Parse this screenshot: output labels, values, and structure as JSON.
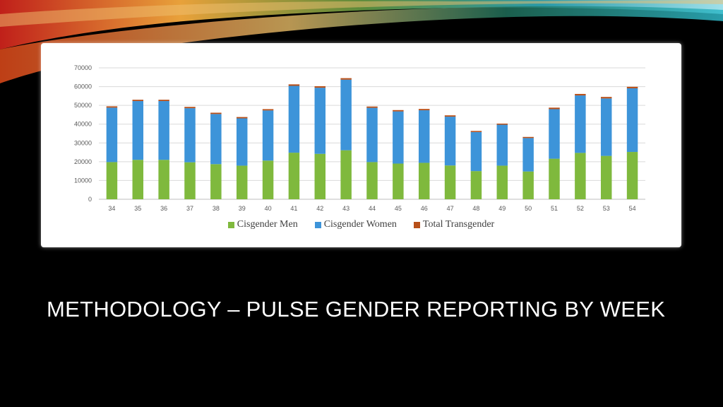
{
  "slide": {
    "title": "METHODOLOGY – PULSE GENDER REPORTING BY WEEK"
  },
  "colors": {
    "men": "#7fb93d",
    "women": "#3d94d9",
    "trans": "#b8501a",
    "grid": "#d9d9d9",
    "tick": "#595959"
  },
  "chart_data": {
    "type": "bar",
    "stacked": true,
    "title": "",
    "xlabel": "",
    "ylabel": "",
    "ylim": [
      0,
      70000
    ],
    "yticks": [
      0,
      10000,
      20000,
      30000,
      40000,
      50000,
      60000,
      70000
    ],
    "grid": true,
    "legend_position": "bottom",
    "categories": [
      "34",
      "35",
      "36",
      "37",
      "38",
      "39",
      "40",
      "41",
      "42",
      "43",
      "44",
      "45",
      "46",
      "47",
      "48",
      "49",
      "50",
      "51",
      "52",
      "53",
      "54"
    ],
    "series": [
      {
        "name": "Cisgender Men",
        "color": "#7fb93d",
        "values": [
          19800,
          21000,
          21000,
          19700,
          18700,
          17900,
          20600,
          24800,
          24200,
          26100,
          19800,
          19000,
          19400,
          18000,
          15000,
          17900,
          14800,
          21600,
          24700,
          23100,
          25200
        ]
      },
      {
        "name": "Cisgender Women",
        "color": "#3d94d9",
        "values": [
          29000,
          31300,
          31300,
          28800,
          26700,
          25200,
          26700,
          35600,
          35200,
          37600,
          28900,
          27800,
          28000,
          26000,
          20800,
          21800,
          17800,
          26400,
          30600,
          30600,
          33900
        ]
      },
      {
        "name": "Total Transgender",
        "color": "#b8501a",
        "values": [
          700,
          700,
          700,
          700,
          700,
          700,
          700,
          800,
          800,
          800,
          700,
          700,
          700,
          700,
          600,
          600,
          600,
          800,
          800,
          800,
          800
        ]
      }
    ]
  }
}
